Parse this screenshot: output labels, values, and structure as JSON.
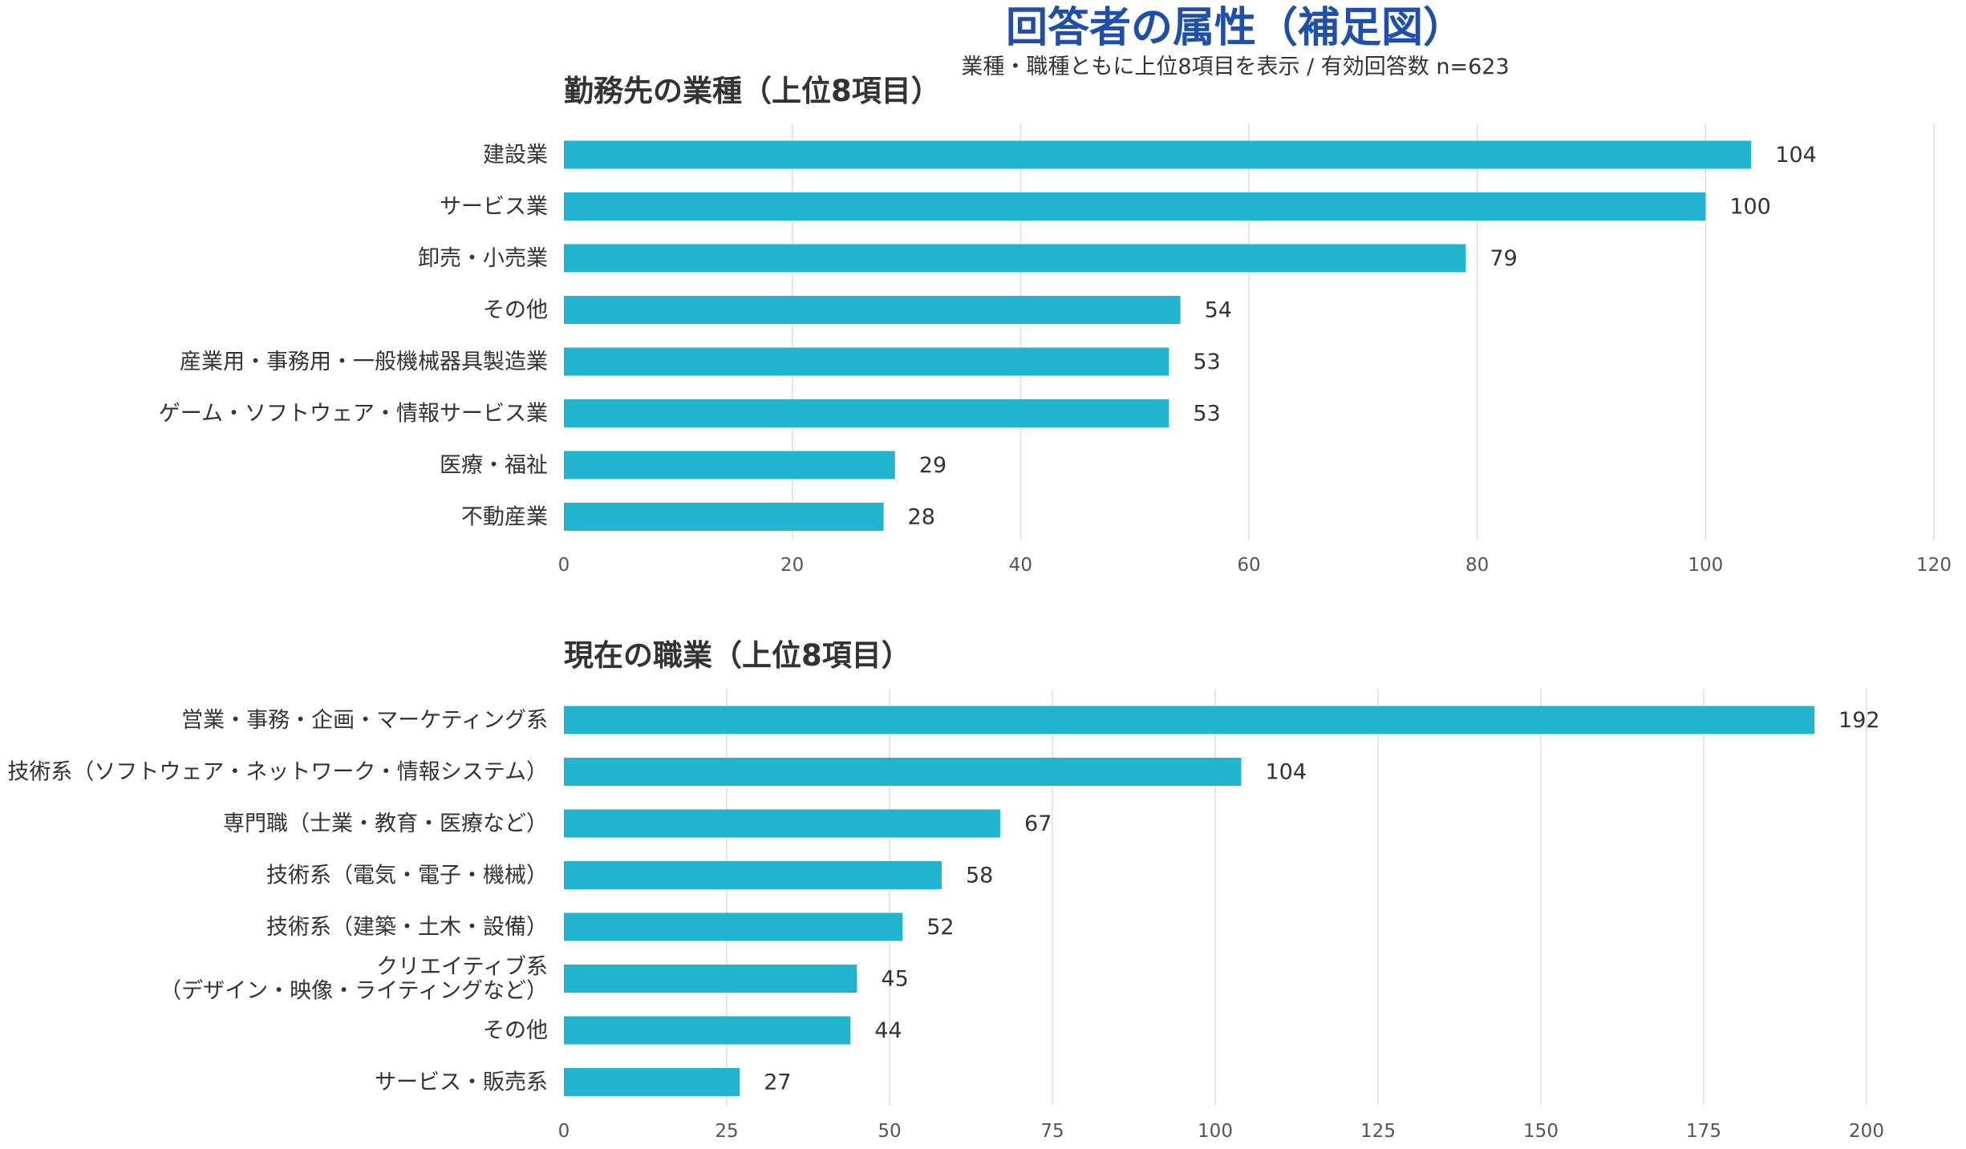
{
  "title": "回答者の属性（補足図）",
  "subtitle": "業種・職種ともに上位8項目を表示 / 有効回答数 n=623",
  "colors": {
    "bar": "#22b3cf",
    "title": "#1f4fa8",
    "text": "#333333",
    "grid": "#dddddd"
  },
  "chart_data": [
    {
      "type": "bar",
      "orientation": "horizontal",
      "title": "勤務先の業種（上位8項目）",
      "categories": [
        "建設業",
        "サービス業",
        "卸売・小売業",
        "その他",
        "産業用・事務用・一般機械器具製造業",
        "ゲーム・ソフトウェア・情報サービス業",
        "医療・福祉",
        "不動産業"
      ],
      "values": [
        104,
        100,
        79,
        54,
        53,
        53,
        29,
        28
      ],
      "xlim": [
        0,
        120
      ],
      "xticks": [
        0,
        20,
        40,
        60,
        80,
        100,
        120
      ],
      "grid": true
    },
    {
      "type": "bar",
      "orientation": "horizontal",
      "title": "現在の職業（上位8項目）",
      "categories": [
        "営業・事務・企画・マーケティング系",
        "技術系（ソフトウェア・ネットワーク・情報システム）",
        "専門職（士業・教育・医療など）",
        "技術系（電気・電子・機械）",
        "技術系（建築・土木・設備）",
        "クリエイティブ系\n（デザイン・映像・ライティングなど）",
        "その他",
        "サービス・販売系"
      ],
      "values": [
        192,
        104,
        67,
        58,
        52,
        45,
        44,
        27
      ],
      "xlim": [
        0,
        200
      ],
      "xticks": [
        0,
        25,
        50,
        75,
        100,
        125,
        150,
        175,
        200
      ],
      "grid": true
    }
  ]
}
